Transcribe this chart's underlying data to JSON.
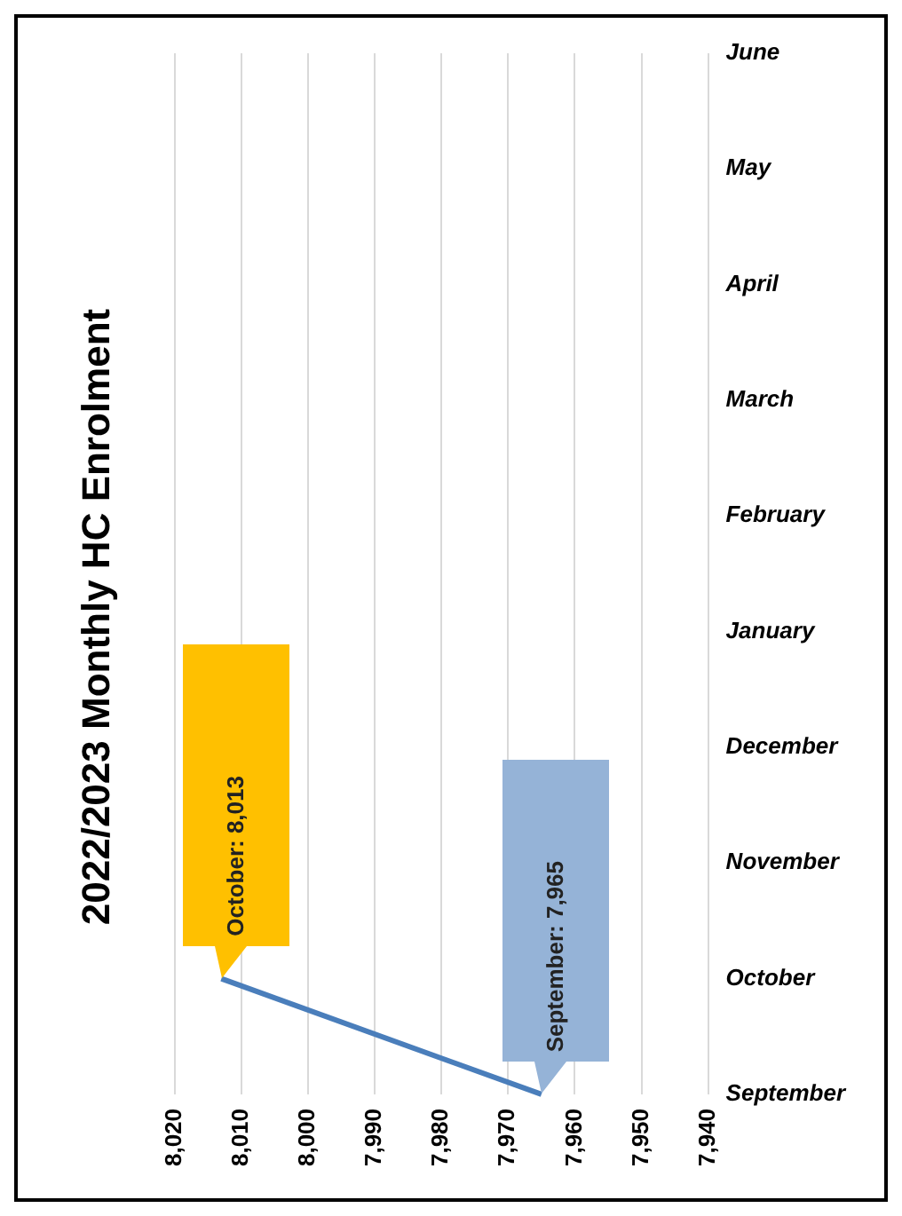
{
  "chart_data": {
    "type": "line",
    "title": "2022/2023 Monthly HC Enrolment",
    "orientation": "horizontal",
    "categories": [
      "June",
      "May",
      "April",
      "March",
      "February",
      "January",
      "December",
      "November",
      "October",
      "September"
    ],
    "series": [
      {
        "color": "#4a7ebb",
        "colors": [
          null,
          null,
          null,
          null,
          null,
          null,
          null,
          null,
          "#ffc000",
          "#95b3d7"
        ],
        "values": [
          null,
          null,
          null,
          null,
          null,
          null,
          null,
          null,
          8013,
          7965
        ],
        "value_labels": [
          null,
          null,
          null,
          null,
          null,
          null,
          null,
          null,
          "October: 8,013",
          "September: 7,965"
        ]
      }
    ],
    "xlim": [
      8020,
      7940
    ],
    "xticks": [
      {
        "value": 8020,
        "label": "8,020"
      },
      {
        "value": 8010,
        "label": "8,010"
      },
      {
        "value": 8000,
        "label": "8,000"
      },
      {
        "value": 7990,
        "label": "7,990"
      },
      {
        "value": 7980,
        "label": "7,980"
      },
      {
        "value": 7970,
        "label": "7,970"
      },
      {
        "value": 7960,
        "label": "7,960"
      },
      {
        "value": 7950,
        "label": "7,950"
      },
      {
        "value": 7940,
        "label": "7,940"
      }
    ],
    "grid": "x",
    "marker": "none",
    "line_style": "solid"
  }
}
